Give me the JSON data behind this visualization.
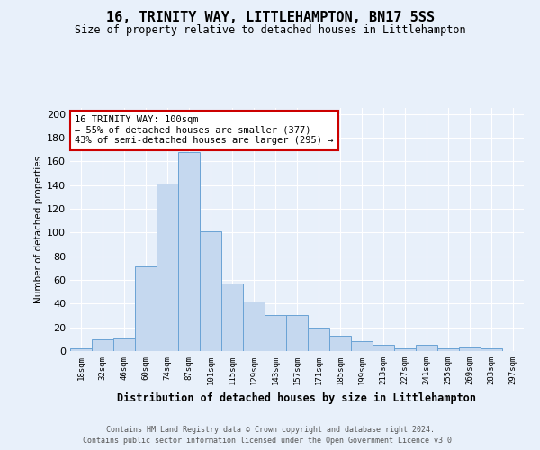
{
  "title": "16, TRINITY WAY, LITTLEHAMPTON, BN17 5SS",
  "subtitle": "Size of property relative to detached houses in Littlehampton",
  "xlabel": "Distribution of detached houses by size in Littlehampton",
  "ylabel": "Number of detached properties",
  "footnote1": "Contains HM Land Registry data © Crown copyright and database right 2024.",
  "footnote2": "Contains public sector information licensed under the Open Government Licence v3.0.",
  "annotation_line1": "16 TRINITY WAY: 100sqm",
  "annotation_line2": "← 55% of detached houses are smaller (377)",
  "annotation_line3": "43% of semi-detached houses are larger (295) →",
  "bar_labels": [
    "18sqm",
    "32sqm",
    "46sqm",
    "60sqm",
    "74sqm",
    "87sqm",
    "101sqm",
    "115sqm",
    "129sqm",
    "143sqm",
    "157sqm",
    "171sqm",
    "185sqm",
    "199sqm",
    "213sqm",
    "227sqm",
    "241sqm",
    "255sqm",
    "269sqm",
    "283sqm",
    "297sqm"
  ],
  "bar_values": [
    2,
    10,
    11,
    71,
    141,
    168,
    101,
    57,
    42,
    30,
    30,
    20,
    13,
    8,
    5,
    2,
    5,
    2,
    3,
    2,
    0
  ],
  "bar_fill_color": "#c5d8ef",
  "bar_edge_color": "#6aa3d5",
  "bg_color": "#e8f0fa",
  "annotation_box_edge": "#cc0000",
  "ylim": [
    0,
    205
  ],
  "yticks": [
    0,
    20,
    40,
    60,
    80,
    100,
    120,
    140,
    160,
    180,
    200
  ]
}
